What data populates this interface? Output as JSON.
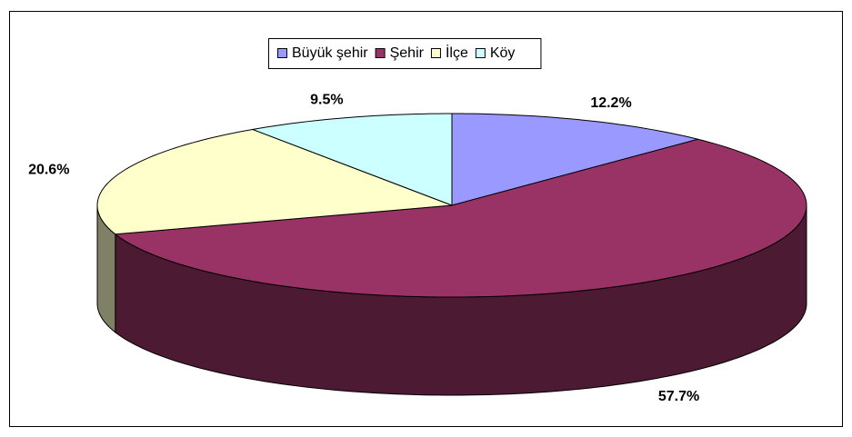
{
  "chart_data": {
    "type": "pie3d",
    "categories": [
      "Büyük şehir",
      "Şehir",
      "İlçe",
      "Köy"
    ],
    "values": [
      12.2,
      57.7,
      20.6,
      9.5
    ],
    "value_labels": [
      "12.2%",
      "57.7%",
      "20.6%",
      "9.5%"
    ],
    "colors": [
      "#9999ff",
      "#993366",
      "#ffffcc",
      "#ccffff"
    ],
    "legend": "top"
  }
}
